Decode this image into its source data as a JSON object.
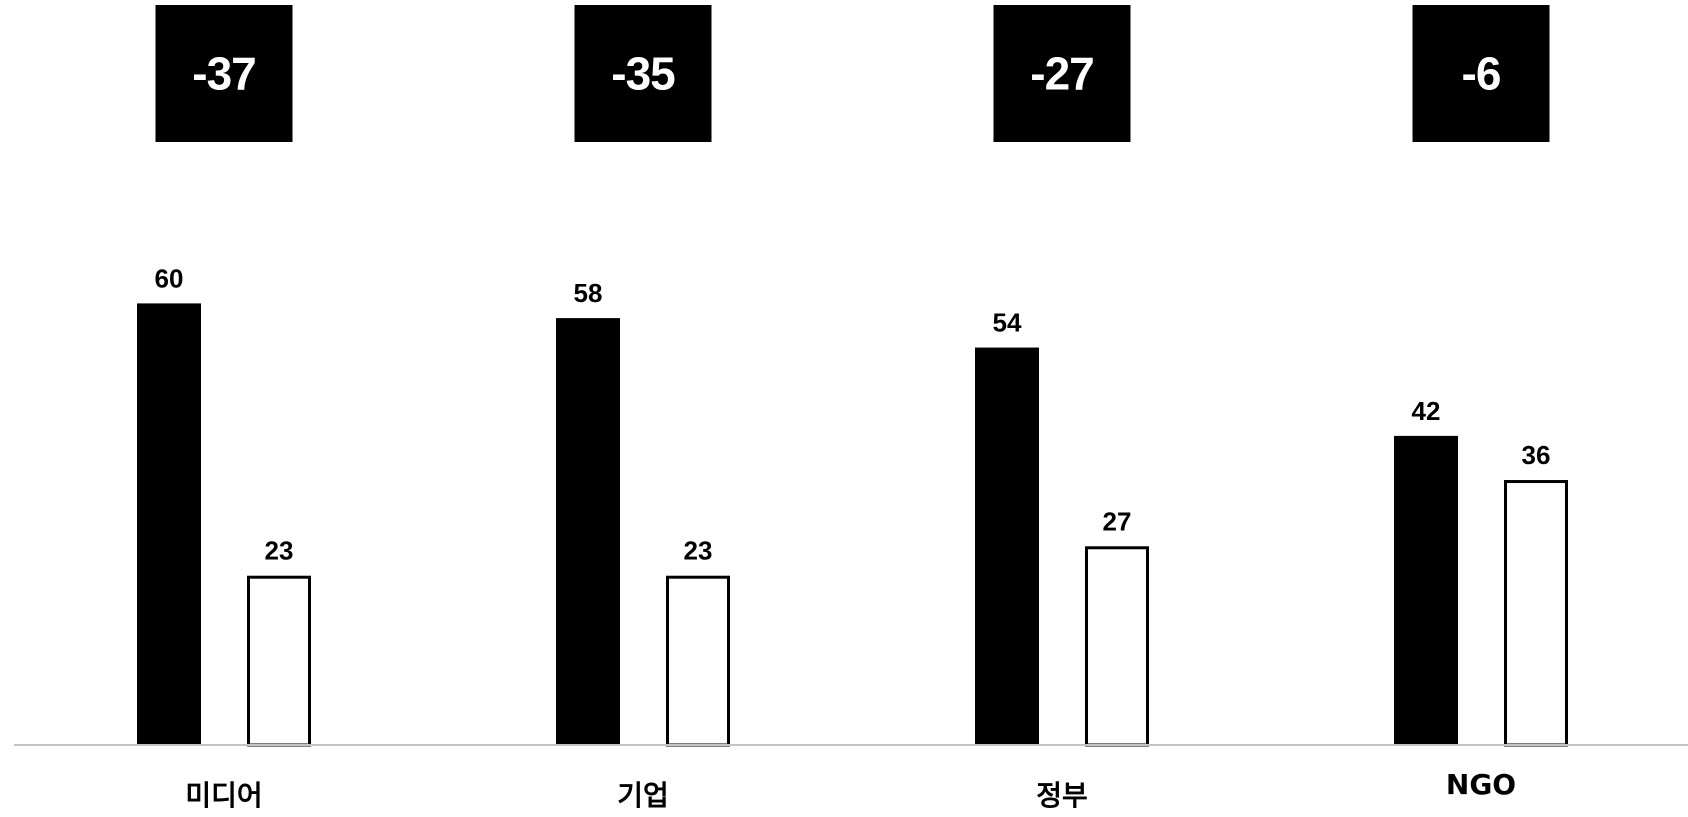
{
  "chart_data": {
    "type": "bar",
    "categories": [
      "미디어",
      "기업",
      "정부",
      "NGO"
    ],
    "series": [
      {
        "values": [
          60,
          58,
          54,
          42
        ],
        "color": "#000000",
        "style": "filled"
      },
      {
        "values": [
          23,
          23,
          27,
          36
        ],
        "color": "#ffffff",
        "style": "outlined"
      }
    ],
    "differences": [
      "-37",
      "-35",
      "-27",
      "-6"
    ],
    "ylim": [
      0,
      100
    ],
    "grid": false,
    "axis_color": "#bfc4c4"
  }
}
